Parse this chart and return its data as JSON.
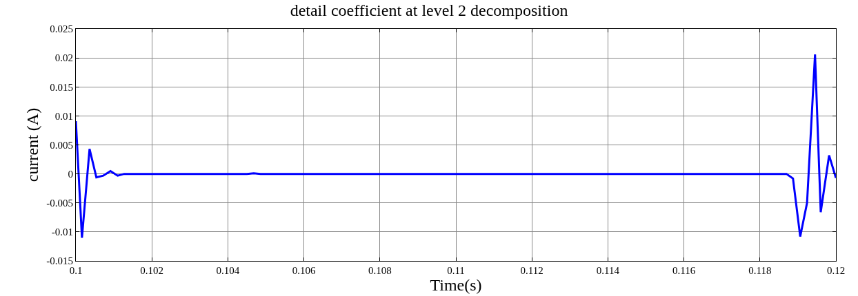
{
  "chart_data": {
    "type": "line",
    "title": "detail coefficient at level 2 decomposition",
    "xlabel": "Time(s)",
    "ylabel": "current (A)",
    "x": [
      0.1,
      0.10016,
      0.10036,
      0.10054,
      0.10072,
      0.10091,
      0.1011,
      0.10127,
      0.1045,
      0.10468,
      0.10486,
      0.1187,
      0.11887,
      0.11906,
      0.11924,
      0.11945,
      0.1196,
      0.11982,
      0.12
    ],
    "series": [
      {
        "color": "#0000ff",
        "values": [
          0.0091,
          -0.011,
          0.0043,
          -0.0006,
          -0.0003,
          0.0005,
          -0.0003,
          0,
          0,
          0.0001,
          0,
          0,
          -0.0008,
          -0.0108,
          -0.005,
          0.0206,
          -0.0066,
          0.0032,
          -0.0007
        ]
      }
    ],
    "xlim": [
      0.1,
      0.12
    ],
    "xticks": [
      0.1,
      0.102,
      0.104,
      0.106,
      0.108,
      0.11,
      0.112,
      0.114,
      0.116,
      0.118,
      0.12
    ],
    "ylim": [
      -0.015,
      0.025
    ],
    "yticks": [
      -0.015,
      -0.01,
      -0.005,
      0,
      0.005,
      0.01,
      0.015,
      0.02,
      0.025
    ],
    "grid": true,
    "marker": "none",
    "line_style": "solid"
  }
}
